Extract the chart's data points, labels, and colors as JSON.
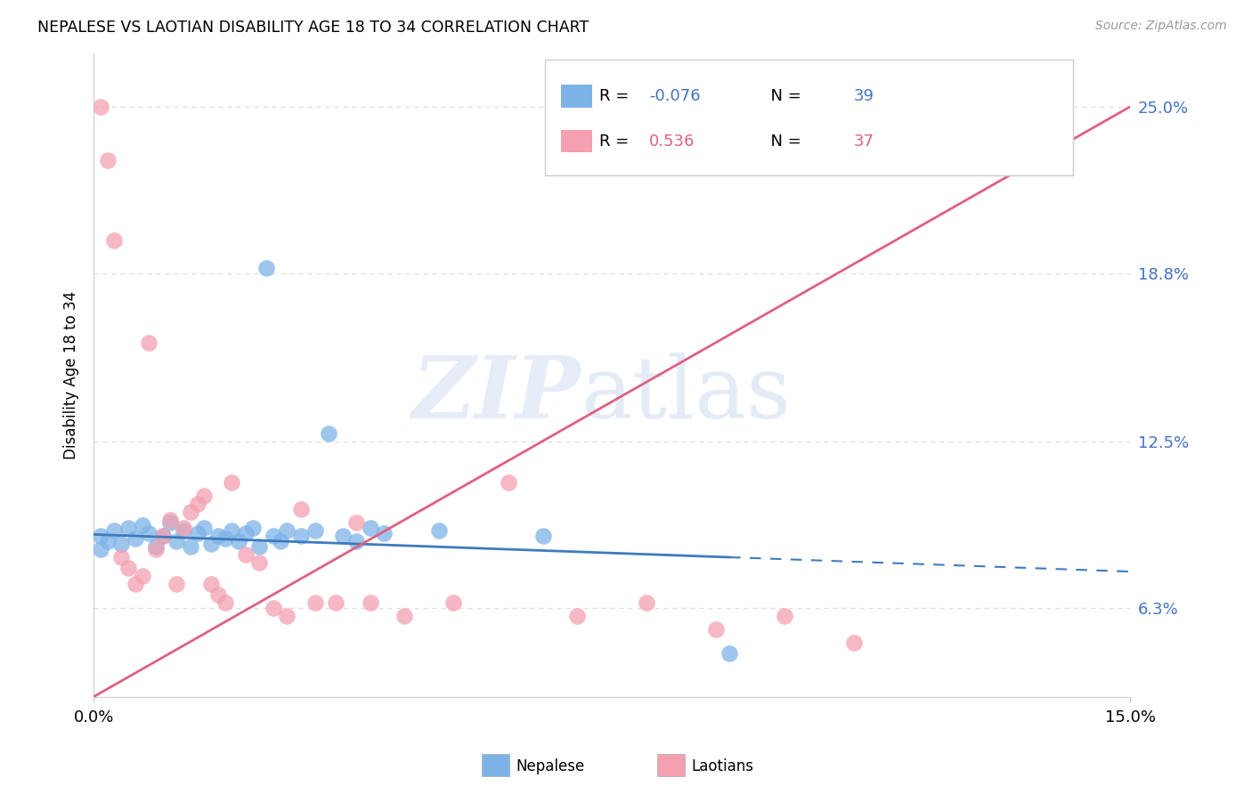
{
  "title": "NEPALESE VS LAOTIAN DISABILITY AGE 18 TO 34 CORRELATION CHART",
  "source": "Source: ZipAtlas.com",
  "ylabel": "Disability Age 18 to 34",
  "ytick_labels": [
    "6.3%",
    "12.5%",
    "18.8%",
    "25.0%"
  ],
  "ytick_values": [
    0.063,
    0.125,
    0.188,
    0.25
  ],
  "xlim": [
    0.0,
    0.15
  ],
  "ylim": [
    0.03,
    0.27
  ],
  "nepalese_R": -0.076,
  "nepalese_N": 39,
  "laotians_R": 0.536,
  "laotians_N": 37,
  "nepalese_color": "#7EB3E8",
  "laotians_color": "#F4A0B0",
  "nepalese_line_color": "#3E7BBF",
  "laotians_line_color": "#E06080",
  "bg_color": "#FFFFFF",
  "grid_color": "#DDDDDD",
  "nep_x": [
    0.001,
    0.002,
    0.003,
    0.004,
    0.005,
    0.006,
    0.007,
    0.008,
    0.009,
    0.01,
    0.011,
    0.012,
    0.013,
    0.014,
    0.015,
    0.016,
    0.017,
    0.018,
    0.019,
    0.02,
    0.021,
    0.022,
    0.023,
    0.024,
    0.025,
    0.026,
    0.027,
    0.028,
    0.03,
    0.032,
    0.034,
    0.036,
    0.038,
    0.04,
    0.042,
    0.05,
    0.065,
    0.092,
    0.001
  ],
  "nep_y": [
    0.09,
    0.088,
    0.092,
    0.087,
    0.093,
    0.089,
    0.094,
    0.091,
    0.086,
    0.09,
    0.095,
    0.088,
    0.092,
    0.086,
    0.091,
    0.093,
    0.087,
    0.09,
    0.089,
    0.092,
    0.088,
    0.091,
    0.093,
    0.086,
    0.19,
    0.09,
    0.088,
    0.092,
    0.09,
    0.092,
    0.128,
    0.09,
    0.088,
    0.093,
    0.091,
    0.092,
    0.09,
    0.046,
    0.085
  ],
  "lao_x": [
    0.001,
    0.002,
    0.003,
    0.004,
    0.005,
    0.006,
    0.007,
    0.008,
    0.009,
    0.01,
    0.011,
    0.012,
    0.013,
    0.014,
    0.015,
    0.016,
    0.017,
    0.018,
    0.019,
    0.02,
    0.022,
    0.024,
    0.026,
    0.028,
    0.03,
    0.032,
    0.035,
    0.038,
    0.04,
    0.045,
    0.052,
    0.06,
    0.07,
    0.08,
    0.09,
    0.1,
    0.11
  ],
  "lao_y": [
    0.25,
    0.23,
    0.2,
    0.082,
    0.078,
    0.072,
    0.075,
    0.162,
    0.085,
    0.09,
    0.096,
    0.072,
    0.093,
    0.099,
    0.102,
    0.105,
    0.072,
    0.068,
    0.065,
    0.11,
    0.083,
    0.08,
    0.063,
    0.06,
    0.1,
    0.065,
    0.065,
    0.095,
    0.065,
    0.06,
    0.065,
    0.11,
    0.06,
    0.065,
    0.055,
    0.06,
    0.05
  ]
}
